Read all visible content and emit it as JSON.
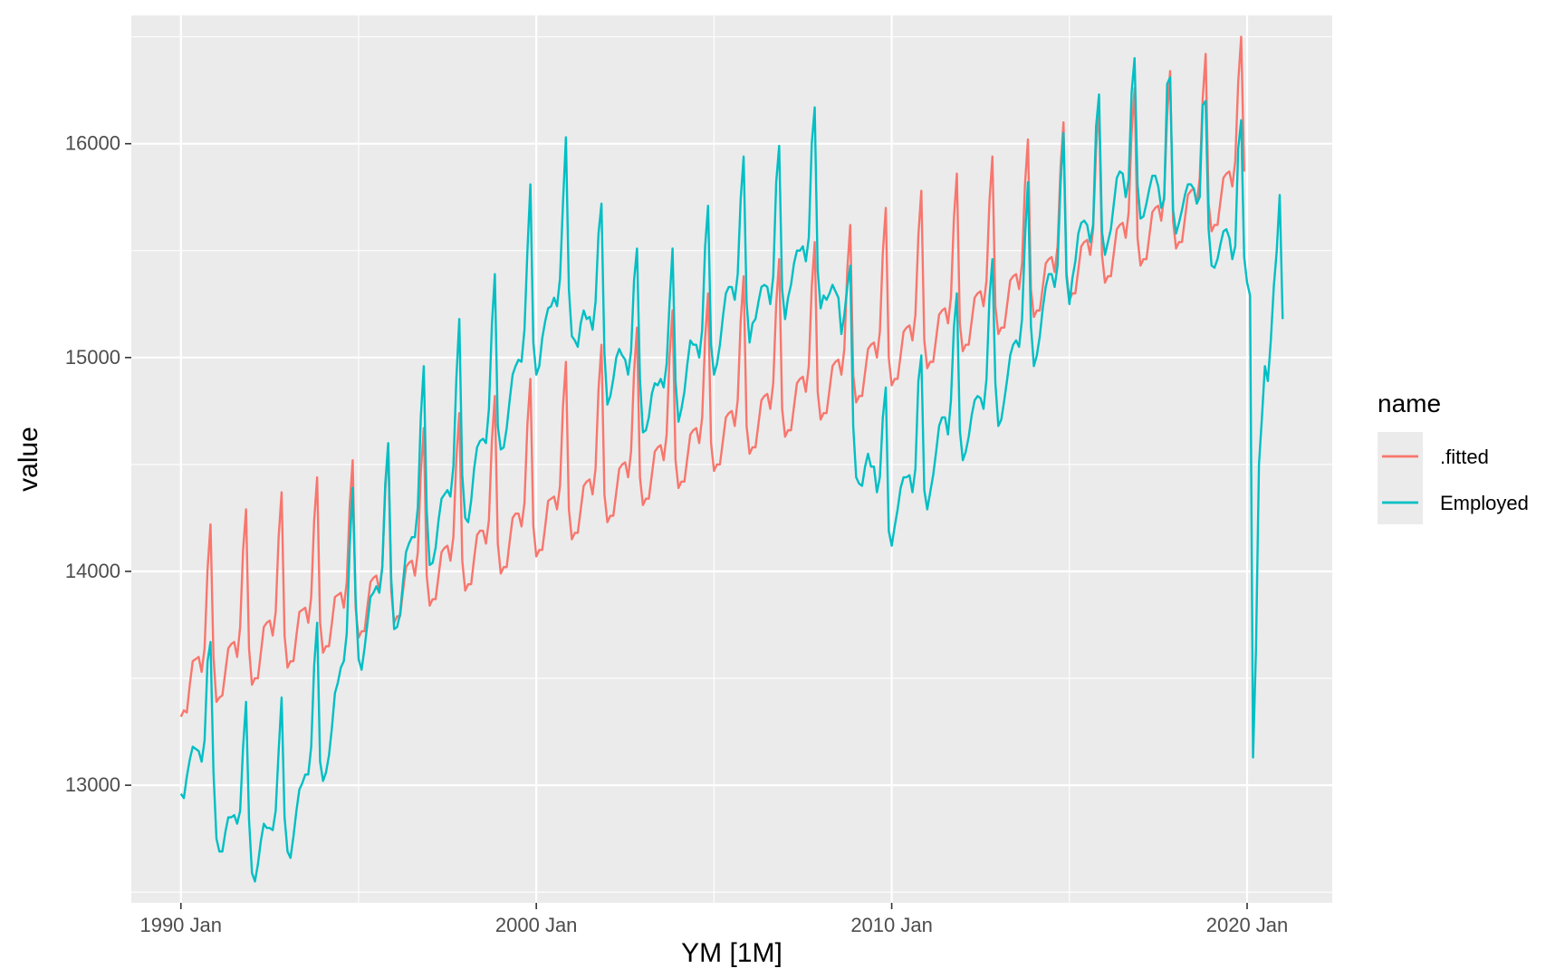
{
  "chart_data": {
    "type": "line",
    "xlabel": "YM [1M]",
    "ylabel": "value",
    "x_start": "1990 Jan",
    "x_end": "2021 Jan",
    "x_ticks": [
      "1990 Jan",
      "2000 Jan",
      "2010 Jan",
      "2020 Jan"
    ],
    "y_ticks": [
      13000,
      14000,
      15000,
      16000
    ],
    "ylim": [
      12450,
      16600
    ],
    "grid": true,
    "legend": {
      "title": "name",
      "position": "right",
      "entries": [
        ".fitted",
        "Employed"
      ]
    },
    "series": [
      {
        "name": ".fitted",
        "color": "#F8766D",
        "values": [
          13320,
          13350,
          13340,
          13470,
          13580,
          13590,
          13600,
          13530,
          13640,
          14010,
          14220,
          13600,
          13390,
          13410,
          13420,
          13530,
          13640,
          13660,
          13670,
          13600,
          13740,
          14100,
          14290,
          13640,
          13470,
          13500,
          13500,
          13620,
          13740,
          13760,
          13770,
          13700,
          13810,
          14160,
          14370,
          13700,
          13550,
          13580,
          13580,
          13700,
          13810,
          13820,
          13830,
          13760,
          13880,
          14240,
          14440,
          13760,
          13620,
          13650,
          13650,
          13760,
          13880,
          13890,
          13900,
          13830,
          13950,
          14310,
          14520,
          13830,
          13690,
          13720,
          13720,
          13840,
          13950,
          13970,
          13980,
          13910,
          14020,
          14380,
          14590,
          13910,
          13760,
          13790,
          13790,
          13910,
          14020,
          14040,
          14050,
          13980,
          14090,
          14460,
          14670,
          13980,
          13840,
          13870,
          13870,
          13980,
          14090,
          14110,
          14120,
          14050,
          14160,
          14530,
          14740,
          14050,
          13910,
          13940,
          13940,
          14060,
          14170,
          14190,
          14190,
          14130,
          14240,
          14610,
          14820,
          14130,
          13990,
          14020,
          14020,
          14140,
          14250,
          14270,
          14270,
          14210,
          14320,
          14690,
          14900,
          14210,
          14070,
          14100,
          14100,
          14210,
          14330,
          14340,
          14350,
          14290,
          14400,
          14770,
          14980,
          14290,
          14150,
          14180,
          14180,
          14290,
          14400,
          14420,
          14430,
          14360,
          14480,
          14850,
          15060,
          14360,
          14230,
          14260,
          14260,
          14370,
          14480,
          14500,
          14510,
          14440,
          14560,
          14930,
          15140,
          14440,
          14310,
          14340,
          14340,
          14450,
          14560,
          14580,
          14590,
          14520,
          14640,
          15010,
          15220,
          14520,
          14390,
          14420,
          14420,
          14530,
          14640,
          14660,
          14670,
          14600,
          14720,
          15090,
          15300,
          14600,
          14470,
          14500,
          14500,
          14610,
          14720,
          14740,
          14750,
          14680,
          14800,
          15170,
          15380,
          14680,
          14550,
          14580,
          14580,
          14690,
          14800,
          14820,
          14830,
          14760,
          14880,
          15250,
          15460,
          14760,
          14630,
          14660,
          14660,
          14770,
          14880,
          14900,
          14910,
          14840,
          14960,
          15330,
          15540,
          14840,
          14710,
          14740,
          14740,
          14850,
          14960,
          14980,
          14990,
          14920,
          15040,
          15410,
          15620,
          14920,
          14790,
          14820,
          14820,
          14930,
          15040,
          15060,
          15070,
          15000,
          15120,
          15490,
          15700,
          15000,
          14870,
          14900,
          14900,
          15010,
          15120,
          15140,
          15150,
          15080,
          15200,
          15570,
          15780,
          15080,
          14950,
          14980,
          14980,
          15090,
          15200,
          15220,
          15230,
          15160,
          15280,
          15650,
          15860,
          15160,
          15030,
          15060,
          15060,
          15170,
          15280,
          15300,
          15310,
          15240,
          15360,
          15730,
          15940,
          15240,
          15110,
          15140,
          15140,
          15250,
          15360,
          15380,
          15390,
          15320,
          15440,
          15810,
          16020,
          15320,
          15190,
          15220,
          15220,
          15330,
          15440,
          15460,
          15470,
          15400,
          15520,
          15890,
          16100,
          15400,
          15270,
          15300,
          15300,
          15410,
          15520,
          15540,
          15550,
          15480,
          15600,
          15970,
          16180,
          15480,
          15350,
          15380,
          15380,
          15490,
          15600,
          15620,
          15630,
          15560,
          15680,
          16050,
          16260,
          15560,
          15430,
          15460,
          15460,
          15570,
          15680,
          15700,
          15710,
          15640,
          15760,
          16130,
          16340,
          15640,
          15510,
          15540,
          15540,
          15650,
          15760,
          15780,
          15790,
          15720,
          15840,
          16210,
          16420,
          15720,
          15590,
          15620,
          15620,
          15730,
          15840,
          15860,
          15870,
          15800,
          15920,
          16290,
          16500,
          15870
        ]
      },
      {
        "name": "Employed",
        "color": "#00BFC4",
        "values": [
          12960,
          12940,
          13040,
          13120,
          13180,
          13170,
          13160,
          13110,
          13210,
          13580,
          13670,
          13060,
          12750,
          12690,
          12690,
          12780,
          12850,
          12850,
          12860,
          12820,
          12880,
          13180,
          13390,
          12840,
          12590,
          12550,
          12630,
          12740,
          12820,
          12800,
          12800,
          12790,
          12880,
          13160,
          13410,
          12850,
          12690,
          12660,
          12760,
          12880,
          12980,
          13010,
          13050,
          13050,
          13180,
          13560,
          13760,
          13110,
          13020,
          13060,
          13140,
          13270,
          13430,
          13480,
          13550,
          13580,
          13710,
          14120,
          14390,
          13870,
          13590,
          13540,
          13640,
          13760,
          13880,
          13900,
          13930,
          13900,
          14020,
          14410,
          14600,
          13970,
          13730,
          13740,
          13800,
          13950,
          14090,
          14130,
          14160,
          14160,
          14300,
          14720,
          14960,
          14280,
          14030,
          14040,
          14110,
          14240,
          14340,
          14360,
          14380,
          14350,
          14490,
          14900,
          15180,
          14450,
          14250,
          14230,
          14330,
          14480,
          14580,
          14610,
          14620,
          14600,
          14760,
          15150,
          15390,
          14680,
          14570,
          14580,
          14670,
          14800,
          14920,
          14960,
          14990,
          14980,
          15130,
          15500,
          15810,
          15070,
          14920,
          14960,
          15090,
          15170,
          15230,
          15240,
          15280,
          15240,
          15370,
          15720,
          16030,
          15320,
          15100,
          15080,
          15050,
          15160,
          15220,
          15180,
          15190,
          15130,
          15260,
          15580,
          15720,
          15020,
          14780,
          14820,
          14900,
          15000,
          15040,
          15010,
          14990,
          14920,
          15030,
          15360,
          15510,
          14900,
          14650,
          14660,
          14720,
          14830,
          14880,
          14870,
          14900,
          14860,
          14970,
          15260,
          15510,
          14890,
          14700,
          14760,
          14840,
          14970,
          15080,
          15060,
          15060,
          15000,
          15130,
          15520,
          15710,
          15060,
          14920,
          14970,
          15060,
          15190,
          15300,
          15330,
          15330,
          15270,
          15390,
          15740,
          15940,
          15260,
          15070,
          15160,
          15180,
          15260,
          15330,
          15340,
          15330,
          15250,
          15380,
          15820,
          15990,
          15320,
          15180,
          15280,
          15340,
          15440,
          15500,
          15500,
          15520,
          15450,
          15560,
          16000,
          16170,
          15410,
          15230,
          15290,
          15270,
          15300,
          15340,
          15310,
          15280,
          15110,
          15200,
          15330,
          15430,
          14680,
          14440,
          14410,
          14400,
          14490,
          14550,
          14490,
          14490,
          14370,
          14440,
          14720,
          14860,
          14190,
          14120,
          14210,
          14290,
          14390,
          14440,
          14440,
          14450,
          14370,
          14480,
          14890,
          15010,
          14380,
          14290,
          14370,
          14450,
          14560,
          14680,
          14720,
          14720,
          14640,
          14800,
          15140,
          15300,
          14660,
          14520,
          14560,
          14630,
          14730,
          14800,
          14820,
          14810,
          14760,
          14900,
          15280,
          15460,
          14880,
          14680,
          14710,
          14800,
          14900,
          15010,
          15060,
          15080,
          15050,
          15180,
          15560,
          15820,
          15150,
          14960,
          15010,
          15100,
          15230,
          15330,
          15390,
          15390,
          15330,
          15430,
          15810,
          16050,
          15380,
          15250,
          15370,
          15450,
          15580,
          15630,
          15640,
          15620,
          15540,
          15620,
          16080,
          16230,
          15590,
          15480,
          15540,
          15600,
          15720,
          15840,
          15870,
          15860,
          15750,
          15830,
          16240,
          16400,
          15810,
          15650,
          15660,
          15720,
          15790,
          15850,
          15850,
          15800,
          15700,
          15740,
          16280,
          16310,
          15690,
          15580,
          15630,
          15690,
          15760,
          15810,
          15810,
          15790,
          15720,
          15750,
          16180,
          16200,
          15600,
          15430,
          15420,
          15460,
          15530,
          15590,
          15600,
          15560,
          15460,
          15520,
          15980,
          16110,
          15470,
          15350,
          15290,
          13130,
          13640,
          14500,
          14720,
          14960,
          14890,
          15080,
          15330,
          15500,
          15760,
          15180
        ]
      }
    ]
  }
}
